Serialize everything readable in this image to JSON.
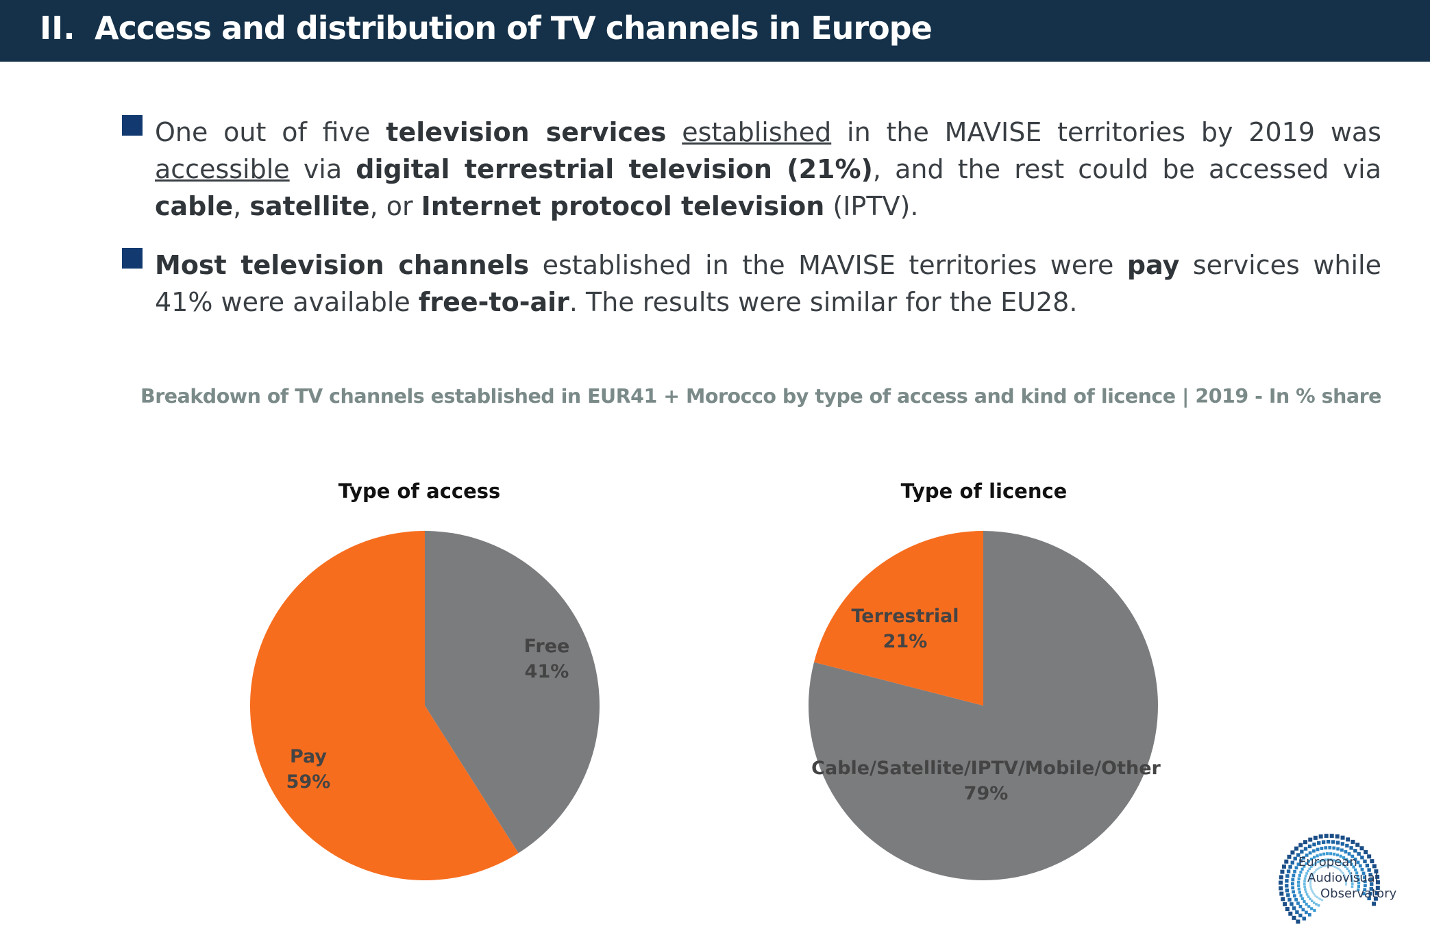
{
  "header": {
    "number": "II.",
    "title": "Access and distribution of TV channels in Europe"
  },
  "bullets": [
    {
      "segments": [
        {
          "t": "One out of five "
        },
        {
          "t": "television services",
          "b": true
        },
        {
          "t": " "
        },
        {
          "t": "established",
          "u": true
        },
        {
          "t": " in the MAVISE territories by 2019 was "
        },
        {
          "t": "accessible",
          "u": true
        },
        {
          "t": " via "
        },
        {
          "t": "digital terrestrial television (21%)",
          "b": true
        },
        {
          "t": ", and the rest could be accessed via "
        },
        {
          "t": "cable",
          "b": true
        },
        {
          "t": ", "
        },
        {
          "t": "satellite",
          "b": true
        },
        {
          "t": ", or "
        },
        {
          "t": "Internet protocol television",
          "b": true
        },
        {
          "t": " (IPTV)."
        }
      ]
    },
    {
      "segments": [
        {
          "t": "Most television channels",
          "b": true
        },
        {
          "t": " established in the MAVISE territories were "
        },
        {
          "t": "pay",
          "b": true
        },
        {
          "t": " services while 41% were available "
        },
        {
          "t": "free-to-air",
          "b": true
        },
        {
          "t": ". The results were similar for the EU28."
        }
      ]
    }
  ],
  "figure_subtitle": "Breakdown of TV channels established in EUR41 + Morocco by type of access and kind of licence | 2019 - In % share",
  "chart_data": [
    {
      "type": "pie",
      "title": "Type of access",
      "categories": [
        "Free",
        "Pay"
      ],
      "values": [
        41,
        59
      ],
      "value_labels": [
        "41%",
        "59%"
      ],
      "colors": [
        "#7b7c7e",
        "#f76d1e"
      ]
    },
    {
      "type": "pie",
      "title": "Type of licence",
      "categories": [
        "Cable/Satellite/IPTV/Mobile/Other",
        "Terrestrial"
      ],
      "values": [
        79,
        21
      ],
      "value_labels": [
        "79%",
        "21%"
      ],
      "colors": [
        "#7b7c7e",
        "#f76d1e"
      ]
    }
  ],
  "logo": {
    "line1": "European",
    "line2": "Audiovisual",
    "line3": "Observatory"
  },
  "colors": {
    "header_bg": "#143149",
    "bullet": "#123a70",
    "accent": "#f76d1e",
    "grey": "#7b7c7e"
  }
}
